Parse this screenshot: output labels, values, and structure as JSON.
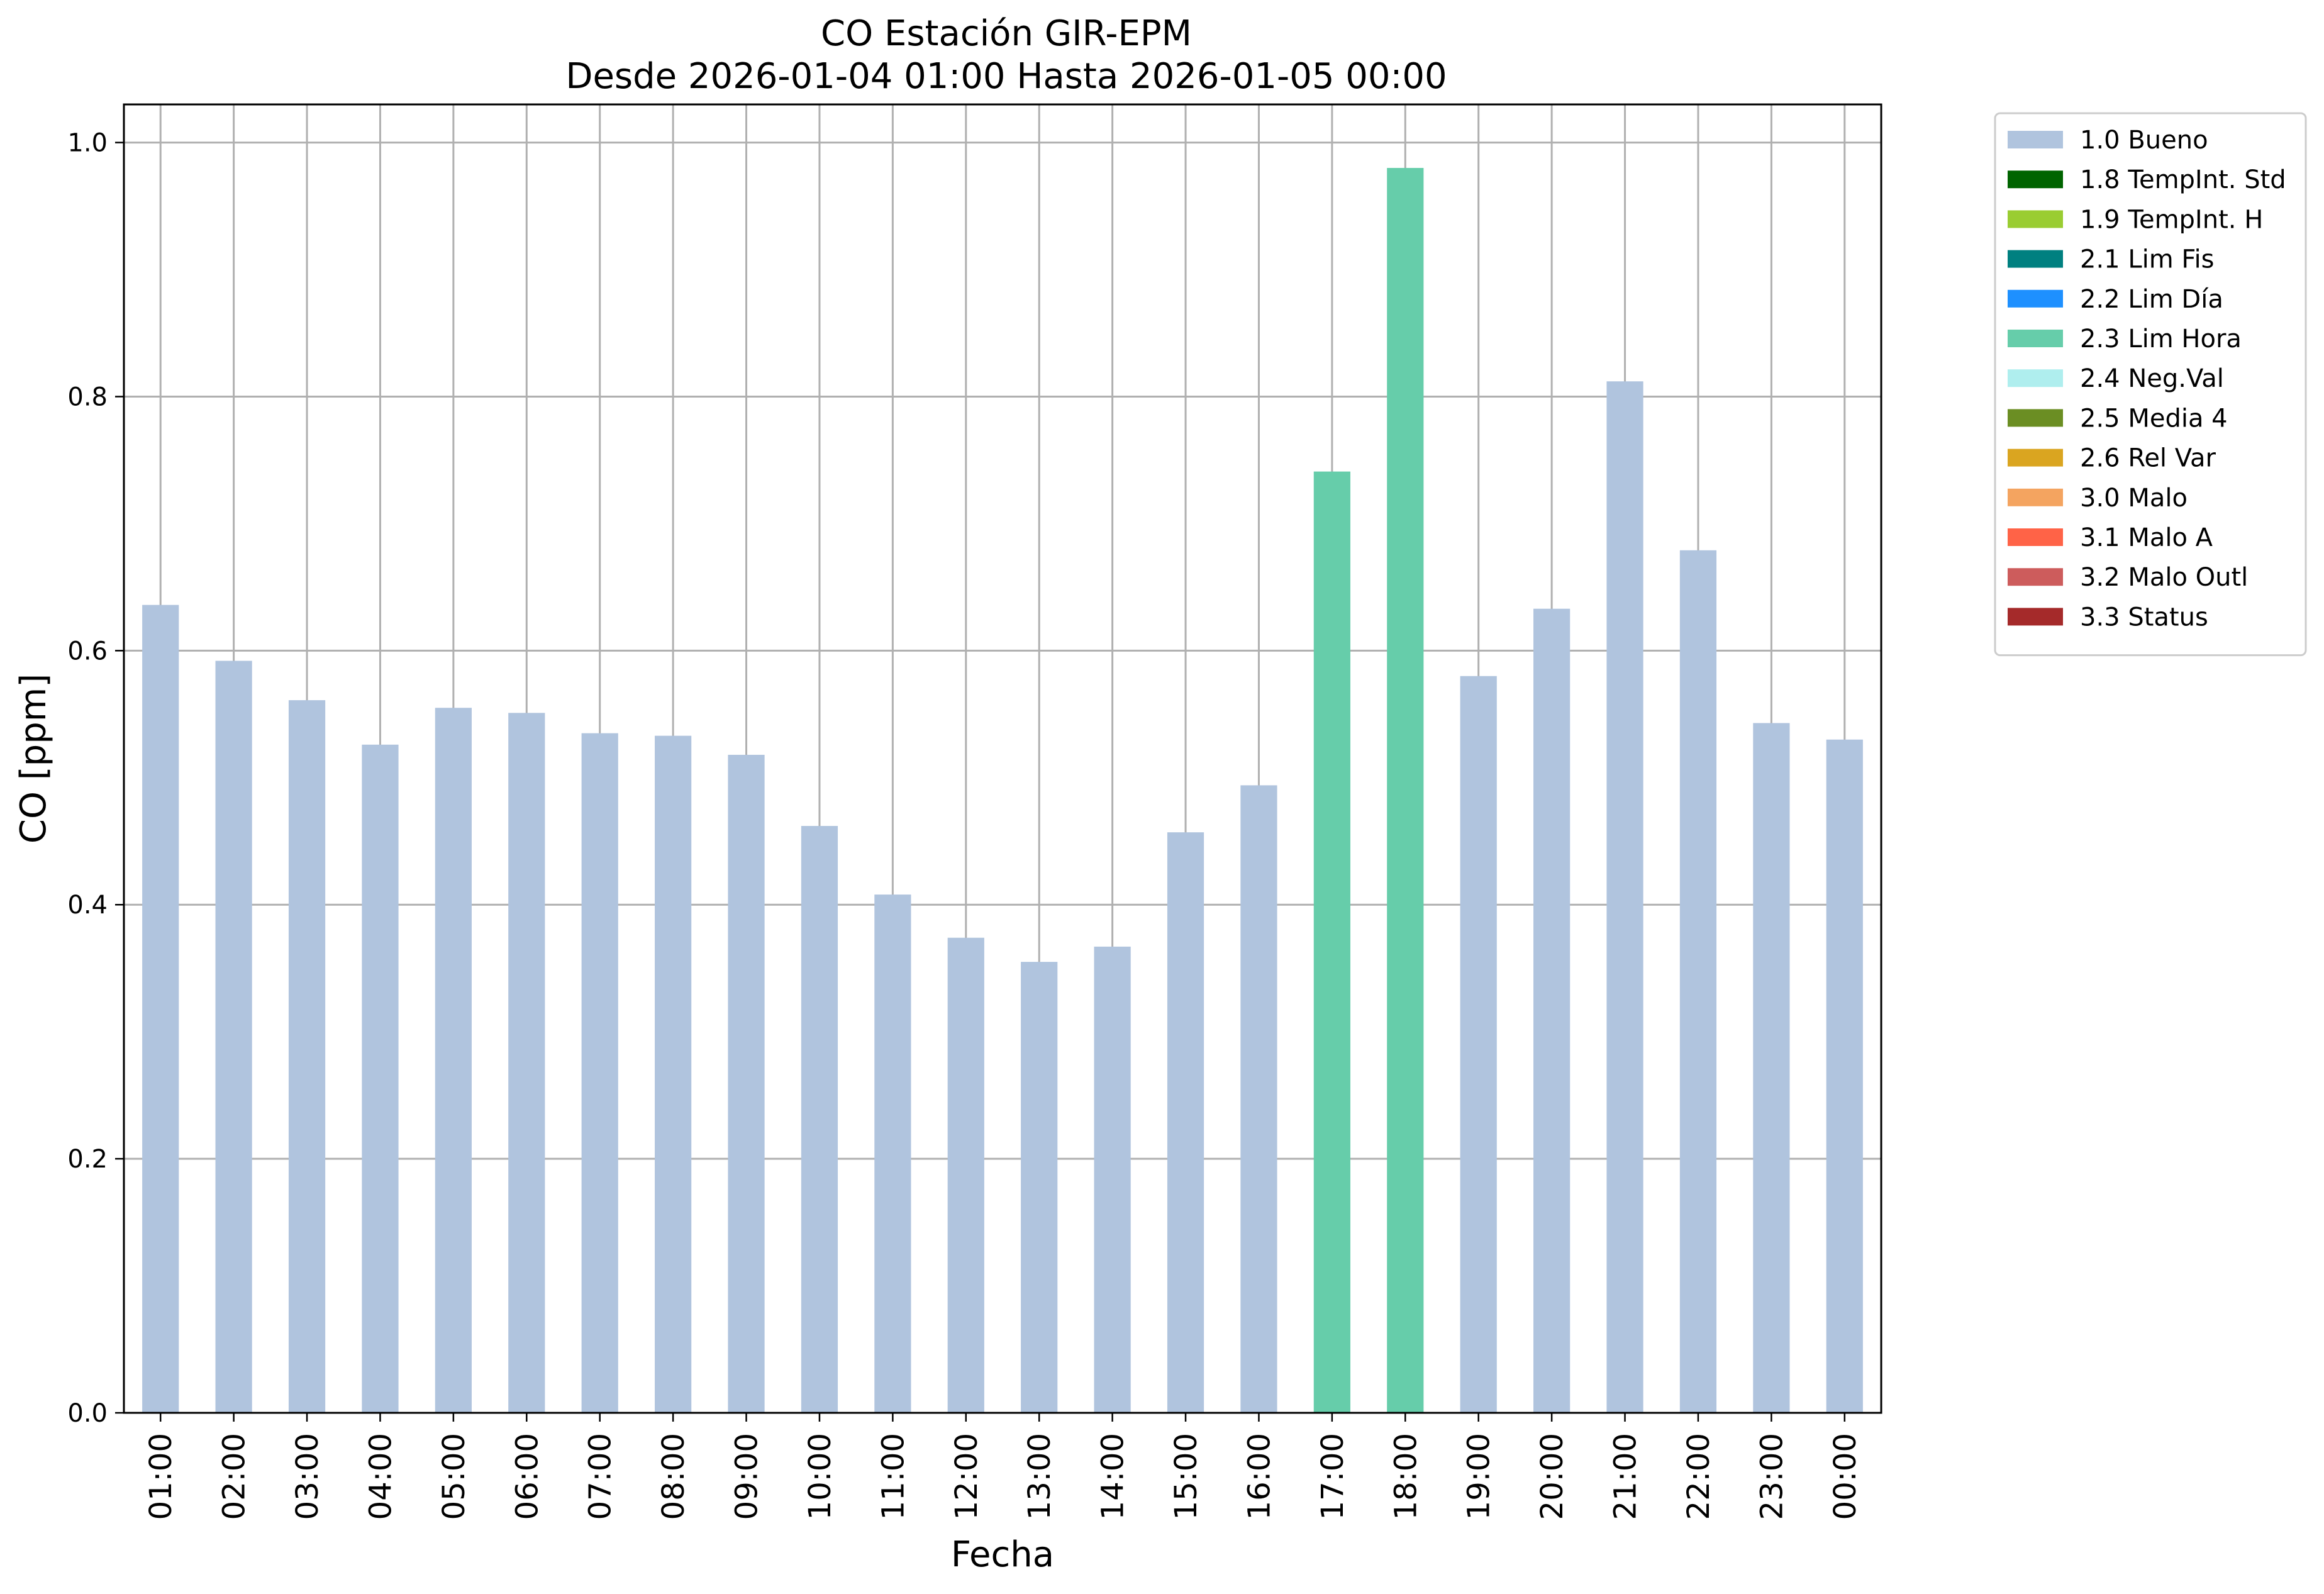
{
  "chart_data": {
    "type": "bar",
    "title": "CO Estación GIR-EPM",
    "subtitle": "Desde 2026-01-04 01:00 Hasta 2026-01-05 00:00",
    "xlabel": "Fecha",
    "ylabel": "CO [ppm]",
    "ylim": [
      0,
      1.03
    ],
    "yticks": [
      "0.0",
      "0.2",
      "0.4",
      "0.6",
      "0.8",
      "1.0"
    ],
    "ytick_values": [
      0.0,
      0.2,
      0.4,
      0.6,
      0.8,
      1.0
    ],
    "grid": true,
    "legend_position": "outside-right-top",
    "categories": [
      "01:00",
      "02:00",
      "03:00",
      "04:00",
      "05:00",
      "06:00",
      "07:00",
      "08:00",
      "09:00",
      "10:00",
      "11:00",
      "12:00",
      "13:00",
      "14:00",
      "15:00",
      "16:00",
      "17:00",
      "18:00",
      "19:00",
      "20:00",
      "21:00",
      "22:00",
      "23:00",
      "00:00"
    ],
    "values": [
      0.636,
      0.592,
      0.561,
      0.526,
      0.555,
      0.551,
      0.535,
      0.533,
      0.518,
      0.462,
      0.408,
      0.374,
      0.355,
      0.367,
      0.457,
      0.494,
      0.741,
      0.98,
      0.58,
      0.633,
      0.812,
      0.679,
      0.543,
      0.53
    ],
    "flags": [
      "1.0 Bueno",
      "1.0 Bueno",
      "1.0 Bueno",
      "1.0 Bueno",
      "1.0 Bueno",
      "1.0 Bueno",
      "1.0 Bueno",
      "1.0 Bueno",
      "1.0 Bueno",
      "1.0 Bueno",
      "1.0 Bueno",
      "1.0 Bueno",
      "1.0 Bueno",
      "1.0 Bueno",
      "1.0 Bueno",
      "1.0 Bueno",
      "2.3 Lim Hora",
      "2.3 Lim Hora",
      "1.0 Bueno",
      "1.0 Bueno",
      "1.0 Bueno",
      "1.0 Bueno",
      "1.0 Bueno",
      "1.0 Bueno"
    ],
    "legend": [
      {
        "name": "1.0 Bueno",
        "color": "#b0c4de"
      },
      {
        "name": "1.8 TempInt. Std",
        "color": "#006400"
      },
      {
        "name": "1.9 TempInt. H",
        "color": "#9acd32"
      },
      {
        "name": "2.1 Lim Fis",
        "color": "#008080"
      },
      {
        "name": "2.2 Lim Día",
        "color": "#1e90ff"
      },
      {
        "name": "2.3 Lim Hora",
        "color": "#66cdaa"
      },
      {
        "name": "2.4 Neg.Val",
        "color": "#afeeee"
      },
      {
        "name": "2.5 Media 4",
        "color": "#6b8e23"
      },
      {
        "name": "2.6 Rel Var",
        "color": "#daa520"
      },
      {
        "name": "3.0 Malo",
        "color": "#f4a460"
      },
      {
        "name": "3.1 Malo A",
        "color": "#ff6347"
      },
      {
        "name": "3.2 Malo Outl",
        "color": "#cd5c5c"
      },
      {
        "name": "3.3 Status",
        "color": "#a52a2a"
      }
    ]
  }
}
